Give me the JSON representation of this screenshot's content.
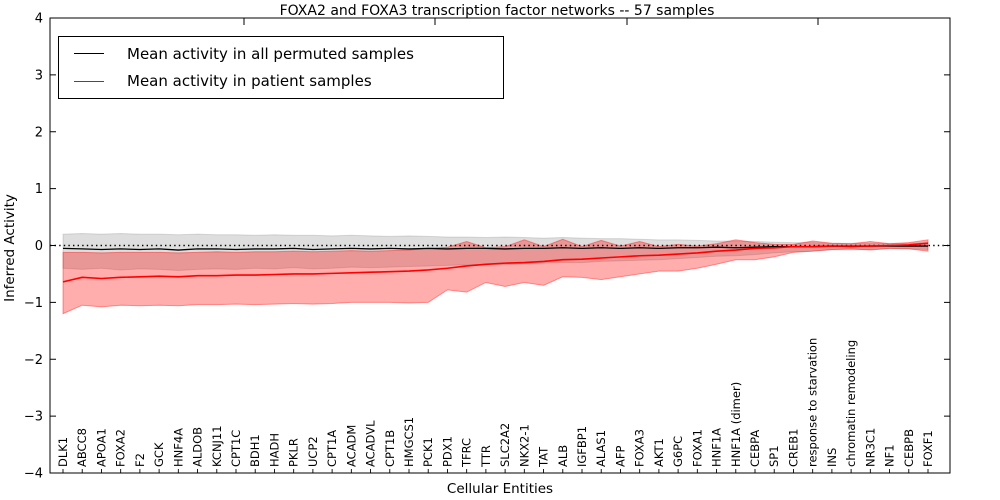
{
  "title": "FOXA2 and FOXA3 transcription factor networks -- 57 samples",
  "axes": {
    "xlabel": "Cellular Entities",
    "ylabel": "Inferred Activity",
    "y_tick_labels": [
      "4",
      "3",
      "2",
      "1",
      "0",
      "−1",
      "−2",
      "−3",
      "−4"
    ]
  },
  "legend": {
    "entries": [
      {
        "label": "Mean activity in all permuted samples",
        "color": "#000000"
      },
      {
        "label": "Mean activity in patient samples",
        "color": "#ff0000"
      }
    ],
    "position": "upper left"
  },
  "colors": {
    "permuted_line": "#000000",
    "patient_line": "#ff0000",
    "permuted_band": "rgba(0,0,0,0.13)",
    "patient_band": "rgba(255,0,0,0.32)",
    "zero_line": "#000000",
    "background": "#ffffff"
  },
  "chart_data": {
    "type": "line",
    "title": "FOXA2 and FOXA3 transcription factor networks -- 57 samples",
    "xlabel": "Cellular Entities",
    "ylabel": "Inferred Activity",
    "ylim": [
      -4,
      4
    ],
    "grid": false,
    "zero_line_style": "dotted",
    "legend_position": "upper left",
    "categories": [
      "DLK1",
      "ABCC8",
      "APOA1",
      "FOXA2",
      "F2",
      "GCK",
      "HNF4A",
      "ALDOB",
      "KCNJ11",
      "CPT1C",
      "BDH1",
      "HADH",
      "PKLR",
      "UCP2",
      "CPT1A",
      "ACADM",
      "ACADVL",
      "CPT1B",
      "HMGCS1",
      "PCK1",
      "PDX1",
      "TFRC",
      "TTR",
      "SLC2A2",
      "NKX2-1",
      "TAT",
      "ALB",
      "IGFBP1",
      "ALAS1",
      "AFP",
      "FOXA3",
      "AKT1",
      "G6PC",
      "FOXA1",
      "HNF1A",
      "HNF1A (dimer)",
      "CEBPA",
      "SP1",
      "CREB1",
      "response to starvation",
      "INS",
      "chromatin remodeling",
      "NR3C1",
      "NF1",
      "CEBPB",
      "FOXF1"
    ],
    "series": [
      {
        "name": "Mean activity in all permuted samples",
        "color": "#000000",
        "values": [
          -0.05,
          -0.06,
          -0.07,
          -0.06,
          -0.07,
          -0.06,
          -0.08,
          -0.06,
          -0.06,
          -0.07,
          -0.06,
          -0.06,
          -0.05,
          -0.07,
          -0.06,
          -0.05,
          -0.06,
          -0.05,
          -0.06,
          -0.05,
          -0.06,
          -0.05,
          -0.05,
          -0.06,
          -0.05,
          -0.05,
          -0.04,
          -0.05,
          -0.04,
          -0.05,
          -0.04,
          -0.05,
          -0.04,
          -0.04,
          -0.03,
          -0.04,
          -0.03,
          -0.02,
          -0.02,
          -0.02,
          -0.01,
          -0.02,
          -0.01,
          -0.01,
          -0.01,
          -0.01
        ],
        "band_upper": [
          0.2,
          0.21,
          0.2,
          0.21,
          0.2,
          0.2,
          0.19,
          0.2,
          0.19,
          0.19,
          0.18,
          0.19,
          0.18,
          0.18,
          0.17,
          0.18,
          0.17,
          0.16,
          0.17,
          0.16,
          0.15,
          0.15,
          0.14,
          0.15,
          0.14,
          0.13,
          0.14,
          0.13,
          0.12,
          0.12,
          0.11,
          0.1,
          0.1,
          0.09,
          0.08,
          0.08,
          0.07,
          0.06,
          0.05,
          0.05,
          0.04,
          0.04,
          0.04,
          0.04,
          0.04,
          0.05
        ],
        "band_lower": [
          -0.4,
          -0.42,
          -0.4,
          -0.43,
          -0.41,
          -0.42,
          -0.44,
          -0.42,
          -0.41,
          -0.42,
          -0.4,
          -0.41,
          -0.39,
          -0.41,
          -0.4,
          -0.38,
          -0.39,
          -0.38,
          -0.37,
          -0.36,
          -0.35,
          -0.34,
          -0.33,
          -0.34,
          -0.32,
          -0.31,
          -0.3,
          -0.3,
          -0.28,
          -0.27,
          -0.26,
          -0.25,
          -0.23,
          -0.21,
          -0.19,
          -0.18,
          -0.16,
          -0.13,
          -0.11,
          -0.1,
          -0.08,
          -0.08,
          -0.07,
          -0.06,
          -0.06,
          -0.07
        ]
      },
      {
        "name": "Mean activity in patient samples",
        "color": "#ff0000",
        "values": [
          -0.64,
          -0.56,
          -0.58,
          -0.56,
          -0.55,
          -0.54,
          -0.55,
          -0.53,
          -0.53,
          -0.52,
          -0.52,
          -0.51,
          -0.5,
          -0.5,
          -0.49,
          -0.48,
          -0.47,
          -0.46,
          -0.45,
          -0.43,
          -0.4,
          -0.36,
          -0.33,
          -0.31,
          -0.3,
          -0.28,
          -0.25,
          -0.24,
          -0.22,
          -0.2,
          -0.18,
          -0.17,
          -0.15,
          -0.13,
          -0.1,
          -0.08,
          -0.05,
          -0.04,
          -0.02,
          -0.02,
          -0.01,
          -0.01,
          -0.01,
          0.0,
          0.01,
          0.04
        ],
        "band_upper": [
          -0.12,
          -0.12,
          -0.13,
          -0.12,
          -0.12,
          -0.12,
          -0.13,
          -0.12,
          -0.11,
          -0.12,
          -0.11,
          -0.11,
          -0.1,
          -0.11,
          -0.1,
          -0.09,
          -0.1,
          -0.09,
          -0.08,
          -0.05,
          -0.03,
          0.07,
          -0.04,
          -0.02,
          0.1,
          -0.02,
          0.11,
          -0.02,
          0.09,
          -0.01,
          0.07,
          -0.02,
          0.02,
          -0.01,
          0.03,
          0.1,
          0.05,
          0.02,
          0.02,
          0.08,
          0.04,
          0.03,
          0.07,
          0.03,
          0.05,
          0.1
        ],
        "band_lower": [
          -1.2,
          -1.05,
          -1.08,
          -1.05,
          -1.06,
          -1.05,
          -1.06,
          -1.04,
          -1.04,
          -1.03,
          -1.04,
          -1.03,
          -1.02,
          -1.03,
          -1.02,
          -1.0,
          -1.0,
          -1.0,
          -1.01,
          -1.0,
          -0.78,
          -0.82,
          -0.65,
          -0.72,
          -0.65,
          -0.7,
          -0.55,
          -0.56,
          -0.6,
          -0.55,
          -0.5,
          -0.45,
          -0.45,
          -0.4,
          -0.33,
          -0.25,
          -0.25,
          -0.2,
          -0.12,
          -0.1,
          -0.07,
          -0.06,
          -0.08,
          -0.05,
          -0.06,
          -0.1
        ]
      }
    ]
  }
}
